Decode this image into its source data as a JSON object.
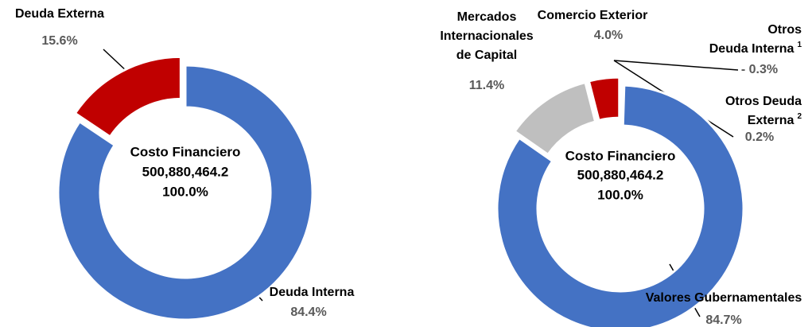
{
  "chart_data": [
    {
      "type": "pie",
      "donut": true,
      "categories": [
        "Deuda Interna",
        "Deuda Externa"
      ],
      "values": [
        84.4,
        15.6
      ],
      "value_labels": [
        "84.4%",
        "15.6%"
      ],
      "colors": [
        "#4472c4",
        "#c00000"
      ],
      "center_text": [
        "Costo Financiero",
        "500,880,464.2",
        "100.0%"
      ]
    },
    {
      "type": "pie",
      "donut": true,
      "categories": [
        [
          "Otros",
          "Deuda Interna"
        ],
        [
          "Otros Deuda",
          "Externa"
        ],
        "Valores Gubernamentales",
        [
          "Mercados",
          "Internacionales",
          "de Capital"
        ],
        "Comercio Exterior"
      ],
      "footnotes": [
        "1",
        "2",
        null,
        null,
        null
      ],
      "values": [
        -0.3,
        0.2,
        84.7,
        11.4,
        4.0
      ],
      "value_labels": [
        "- 0.3%",
        "0.2%",
        "84.7%",
        "11.4%",
        "4.0%"
      ],
      "colors": [
        "#ffc000",
        "#5b9bd5",
        "#4472c4",
        "#bfbfbf",
        "#c00000"
      ],
      "center_text": [
        "Costo Financiero",
        "500,880,464.2",
        "100.0%"
      ]
    }
  ]
}
